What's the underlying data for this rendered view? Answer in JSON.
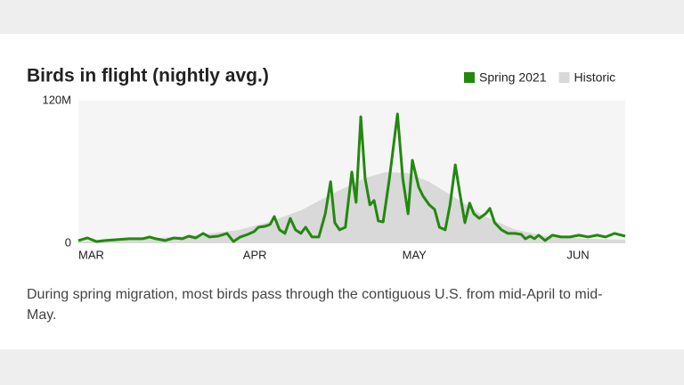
{
  "chart_data": {
    "type": "line",
    "title": "Birds in flight (nightly avg.)",
    "caption": "During spring migration, most birds pass through the contiguous U.S. from mid-April to mid-May.",
    "xlim": [
      0,
      103
    ],
    "xticks": [
      {
        "value": 0,
        "label": "MAR"
      },
      {
        "value": 31,
        "label": "APR"
      },
      {
        "value": 61,
        "label": "MAY"
      },
      {
        "value": 92,
        "label": "JUN"
      }
    ],
    "ylim": [
      0,
      120
    ],
    "yticks": [
      0,
      {
        "value": 120,
        "label": "120M"
      }
    ],
    "series": [
      {
        "name": "Spring 2021",
        "color": "#23880f",
        "kind": "line",
        "x": [
          0,
          1.7,
          3.4,
          5.0,
          7.0,
          9.6,
          12.1,
          13.4,
          14.6,
          16.3,
          18.0,
          19.6,
          20.8,
          22.1,
          23.5,
          24.7,
          26.3,
          28.0,
          29.2,
          30.5,
          31.9,
          33.1,
          33.9,
          35.2,
          36.1,
          36.9,
          37.9,
          38.9,
          39.9,
          40.9,
          41.9,
          42.8,
          44.0,
          45.3,
          46.5,
          47.5,
          48.3,
          49.2,
          50.3,
          51.5,
          52.3,
          53.2,
          54.0,
          54.9,
          55.7,
          56.5,
          57.4,
          58.6,
          60.1,
          61.1,
          62.1,
          62.9,
          64.1,
          64.9,
          66.1,
          67.1,
          68.0,
          69.1,
          70.0,
          71.0,
          71.8,
          72.8,
          73.7,
          74.5,
          75.5,
          76.7,
          77.5,
          78.4,
          79.7,
          80.9,
          82.2,
          83.4,
          84.2,
          85.1,
          85.9,
          86.7,
          87.9,
          89.3,
          90.9,
          92.6,
          94.3,
          96.0,
          97.7,
          99.3,
          101.0,
          103.0
        ],
        "values": [
          2.3,
          4.5,
          1.5,
          2.3,
          3,
          3.8,
          3.8,
          5.3,
          3.8,
          2.3,
          4.5,
          3.8,
          6,
          4.5,
          8.3,
          5.3,
          6,
          8.3,
          1.5,
          5.3,
          7.5,
          9.8,
          13.5,
          14.3,
          15.8,
          22.5,
          11.3,
          8.3,
          21,
          11.3,
          8.3,
          13.5,
          5.3,
          5.3,
          24.8,
          51.8,
          17.3,
          11.3,
          13.5,
          60,
          34.5,
          106.5,
          54.8,
          32.3,
          36,
          18.8,
          18,
          54.8,
          108.8,
          54.8,
          24.8,
          69.8,
          47.3,
          39.8,
          32.3,
          28.5,
          13.5,
          11.3,
          32.3,
          66,
          43.5,
          17.3,
          33.8,
          24.8,
          21,
          24.8,
          29.3,
          17.3,
          11.3,
          8.3,
          8.3,
          7.5,
          3.8,
          6,
          3.8,
          6.8,
          2.3,
          6.8,
          5.3,
          5.3,
          6.8,
          5.3,
          6.8,
          5.3,
          8.3,
          6
        ]
      },
      {
        "name": "Historic",
        "color": "#d9d9d9",
        "kind": "area",
        "x": [
          0,
          10,
          20,
          30,
          36,
          42,
          48,
          54,
          58,
          62,
          66,
          70,
          76,
          82,
          88,
          95,
          103
        ],
        "values": [
          1.5,
          3,
          6,
          11,
          18,
          28,
          42,
          55,
          60,
          59,
          52,
          41,
          24,
          12,
          6,
          4,
          3
        ]
      }
    ]
  }
}
